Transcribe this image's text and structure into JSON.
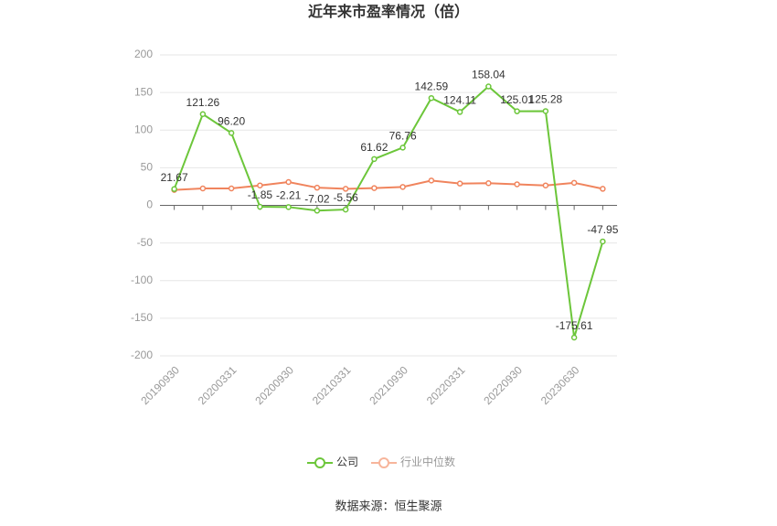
{
  "chart_data": {
    "type": "line",
    "title": "近年来市盈率情况（倍）",
    "categories": [
      "20190930",
      null,
      "20200331",
      null,
      "20200930",
      null,
      "20210331",
      null,
      "20210930",
      null,
      "20220331",
      null,
      "20220930",
      null,
      "20230630",
      null
    ],
    "series": [
      {
        "name": "公司",
        "color": "#6cc63a",
        "values": [
          21.67,
          121.26,
          96.2,
          -1.85,
          -2.21,
          -7.02,
          -5.56,
          61.62,
          76.76,
          142.59,
          124.11,
          158.04,
          125.01,
          125.28,
          -175.61,
          -47.95
        ],
        "value_labels": [
          "21.67",
          "121.26",
          "96.20",
          "-1.85",
          "-2.21",
          "-7.02",
          "-5.56",
          "61.62",
          "76.76",
          "142.59",
          "124.11",
          "158.04",
          "125.01",
          "125.28",
          "-175.61",
          "-47.95"
        ]
      },
      {
        "name": "行业中位数",
        "color": "#f0845d",
        "values": [
          20.5,
          22.5,
          22.5,
          26.5,
          31,
          23.5,
          22,
          23,
          24.5,
          33,
          29,
          29.5,
          28,
          26.5,
          30,
          22
        ]
      }
    ],
    "ylim": [
      -200,
      200
    ],
    "yticks": [
      -200,
      -150,
      -100,
      -50,
      0,
      50,
      100,
      150,
      200
    ],
    "grid": true,
    "source": "数据来源：恒生聚源"
  }
}
